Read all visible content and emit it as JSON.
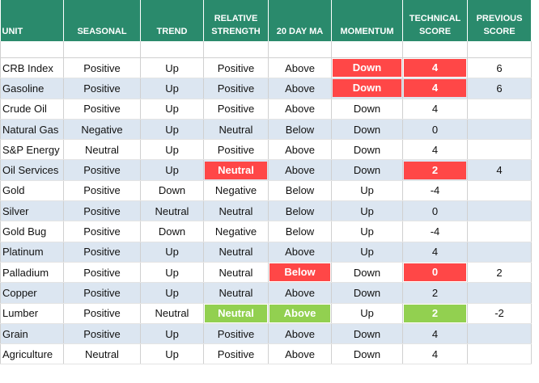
{
  "table": {
    "columns": [
      "UNIT",
      "SEASONAL",
      "TREND",
      "RELATIVE STRENGTH",
      "20 DAY MA",
      "MOMENTUM",
      "TECHNICAL SCORE",
      "PREVIOUS SCORE"
    ],
    "rows": [
      [
        "CRB Index",
        "Positive",
        "Up",
        "Positive",
        "Above",
        "Down",
        4,
        6
      ],
      [
        "Gasoline",
        "Positive",
        "Up",
        "Positive",
        "Above",
        "Down",
        4,
        6
      ],
      [
        "Crude Oil",
        "Positive",
        "Up",
        "Positive",
        "Above",
        "Down",
        4,
        null
      ],
      [
        "Natural Gas",
        "Negative",
        "Up",
        "Neutral",
        "Below",
        "Down",
        0,
        null
      ],
      [
        "S&P Energy",
        "Neutral",
        "Up",
        "Positive",
        "Above",
        "Down",
        4,
        null
      ],
      [
        "Oil Services",
        "Positive",
        "Up",
        "Neutral",
        "Above",
        "Down",
        2,
        4
      ],
      [
        "Gold",
        "Positive",
        "Down",
        "Negative",
        "Below",
        "Up",
        -4,
        null
      ],
      [
        "Silver",
        "Positive",
        "Neutral",
        "Neutral",
        "Below",
        "Up",
        0,
        null
      ],
      [
        "Gold Bug",
        "Positive",
        "Down",
        "Negative",
        "Below",
        "Up",
        -4,
        null
      ],
      [
        "Platinum",
        "Positive",
        "Up",
        "Neutral",
        "Above",
        "Up",
        4,
        null
      ],
      [
        "Palladium",
        "Positive",
        "Up",
        "Neutral",
        "Below",
        "Down",
        0,
        2
      ],
      [
        "Copper",
        "Positive",
        "Up",
        "Neutral",
        "Above",
        "Down",
        2,
        null
      ],
      [
        "Lumber",
        "Positive",
        "Neutral",
        "Neutral",
        "Above",
        "Up",
        2,
        -2
      ],
      [
        "Grain",
        "Positive",
        "Up",
        "Positive",
        "Above",
        "Down",
        4,
        null
      ],
      [
        "Agriculture",
        "Neutral",
        "Up",
        "Positive",
        "Above",
        "Down",
        4,
        null
      ]
    ],
    "highlights": [
      {
        "row": 0,
        "col": 5,
        "color": "#ff4747"
      },
      {
        "row": 0,
        "col": 6,
        "color": "#ff4747"
      },
      {
        "row": 1,
        "col": 5,
        "color": "#ff4747"
      },
      {
        "row": 1,
        "col": 6,
        "color": "#ff4747"
      },
      {
        "row": 5,
        "col": 3,
        "color": "#ff4747"
      },
      {
        "row": 5,
        "col": 6,
        "color": "#ff4747"
      },
      {
        "row": 10,
        "col": 4,
        "color": "#ff4747"
      },
      {
        "row": 10,
        "col": 6,
        "color": "#ff4747"
      },
      {
        "row": 12,
        "col": 3,
        "color": "#92d050"
      },
      {
        "row": 12,
        "col": 4,
        "color": "#92d050"
      },
      {
        "row": 12,
        "col": 6,
        "color": "#92d050"
      }
    ]
  }
}
